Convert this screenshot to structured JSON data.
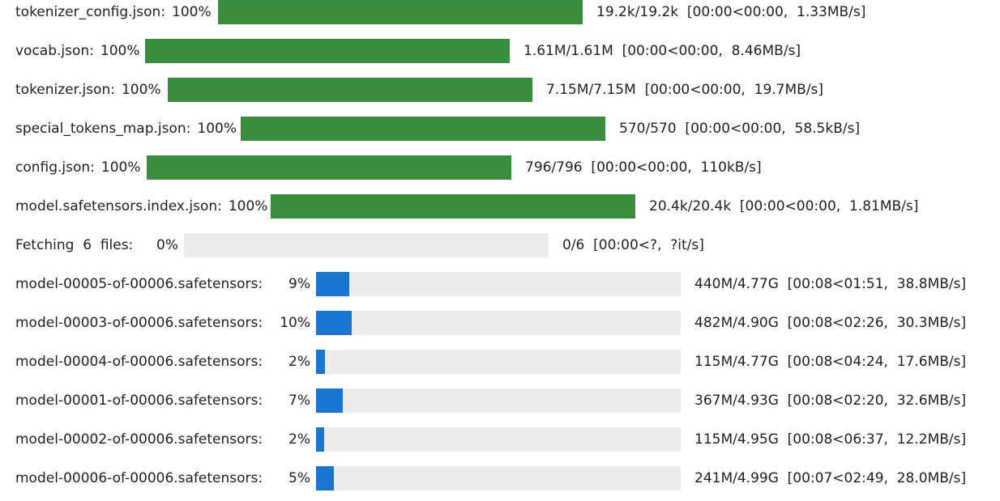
{
  "progress_bars": [
    {
      "name": "tokenizer_config.json",
      "label": "tokenizer_config.json:",
      "percent_text": "100%",
      "progress": 1.0,
      "stats": "19.2k/19.2k  [00:00<00:00,  1.33MB/s]",
      "state": "done"
    },
    {
      "name": "vocab.json",
      "label": "vocab.json:",
      "percent_text": "100%",
      "progress": 1.0,
      "stats": "1.61M/1.61M  [00:00<00:00,  8.46MB/s]",
      "state": "done"
    },
    {
      "name": "tokenizer.json",
      "label": "tokenizer.json:",
      "percent_text": "100%",
      "progress": 1.0,
      "stats": "7.15M/7.15M  [00:00<00:00,  19.7MB/s]",
      "state": "done"
    },
    {
      "name": "special_tokens_map.json",
      "label": "special_tokens_map.json:",
      "percent_text": "100%",
      "progress": 1.0,
      "stats": "570/570  [00:00<00:00,  58.5kB/s]",
      "state": "done"
    },
    {
      "name": "config.json",
      "label": "config.json:",
      "percent_text": "100%",
      "progress": 1.0,
      "stats": "796/796  [00:00<00:00,  110kB/s]",
      "state": "done"
    },
    {
      "name": "model.safetensors.index.json",
      "label": "model.safetensors.index.json:",
      "percent_text": "100%",
      "progress": 1.0,
      "stats": "20.4k/20.4k  [00:00<00:00,  1.81MB/s]",
      "state": "done"
    },
    {
      "name": "fetching-files",
      "label": "Fetching  6  files:",
      "percent_text": "0%",
      "progress": 0.0,
      "stats": "0/6  [00:00<?,  ?it/s]",
      "state": "idle"
    },
    {
      "name": "model-00005-of-00006.safetensors",
      "label": "model-00005-of-00006.safetensors:",
      "percent_text": "9%",
      "progress": 0.092,
      "stats": "440M/4.77G  [00:08<01:51,  38.8MB/s]",
      "state": "active"
    },
    {
      "name": "model-00003-of-00006.safetensors",
      "label": "model-00003-of-00006.safetensors:",
      "percent_text": "10%",
      "progress": 0.098,
      "stats": "482M/4.90G  [00:08<02:26,  30.3MB/s]",
      "state": "active"
    },
    {
      "name": "model-00004-of-00006.safetensors",
      "label": "model-00004-of-00006.safetensors:",
      "percent_text": "2%",
      "progress": 0.024,
      "stats": "115M/4.77G  [00:08<04:24,  17.6MB/s]",
      "state": "active"
    },
    {
      "name": "model-00001-of-00006.safetensors",
      "label": "model-00001-of-00006.safetensors:",
      "percent_text": "7%",
      "progress": 0.074,
      "stats": "367M/4.93G  [00:08<02:20,  32.6MB/s]",
      "state": "active"
    },
    {
      "name": "model-00002-of-00006.safetensors",
      "label": "model-00002-of-00006.safetensors:",
      "percent_text": "2%",
      "progress": 0.023,
      "stats": "115M/4.95G  [00:08<06:37,  12.2MB/s]",
      "state": "active"
    },
    {
      "name": "model-00006-of-00006.safetensors",
      "label": "model-00006-of-00006.safetensors:",
      "percent_text": "5%",
      "progress": 0.048,
      "stats": "241M/4.99G  [00:07<02:49,  28.0MB/s]",
      "state": "active"
    }
  ],
  "colors": {
    "complete_bar": "#388e3c",
    "in_progress_bar": "#1976d2",
    "track": "#ececec"
  }
}
